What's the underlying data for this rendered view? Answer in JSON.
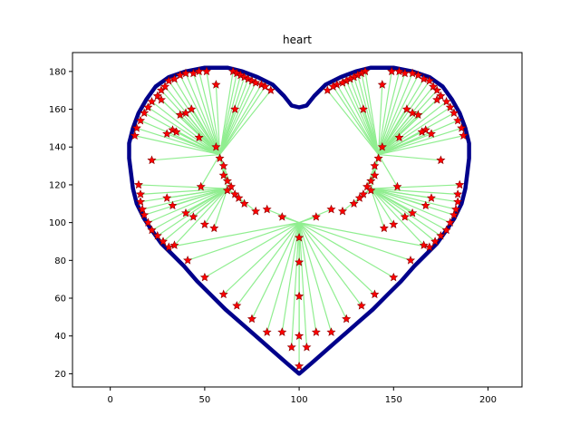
{
  "chart_data": {
    "type": "scatter",
    "title": "heart",
    "xlabel": "",
    "ylabel": "",
    "xlim": [
      -20,
      218
    ],
    "ylim": [
      13,
      190
    ],
    "xticks": [
      0,
      50,
      100,
      150,
      200
    ],
    "yticks": [
      20,
      40,
      60,
      80,
      100,
      120,
      140,
      160,
      180
    ],
    "xtick_labels": [
      "0",
      "50",
      "100",
      "150",
      "200"
    ],
    "ytick_labels": [
      "20",
      "40",
      "60",
      "80",
      "100",
      "120",
      "140",
      "160",
      "180"
    ],
    "grid": false,
    "legend": "none",
    "colors": {
      "outline": "#00008b",
      "spokes": "#90ee90",
      "markers": "#ff0000",
      "marker_edge": "#8b0000"
    },
    "outline": [
      [
        100,
        20
      ],
      [
        93,
        26
      ],
      [
        85,
        33
      ],
      [
        77,
        40
      ],
      [
        69,
        47
      ],
      [
        61,
        54
      ],
      [
        53,
        62
      ],
      [
        46,
        69
      ],
      [
        39,
        77
      ],
      [
        33,
        83
      ],
      [
        27,
        89
      ],
      [
        22,
        96
      ],
      [
        18,
        102
      ],
      [
        14,
        110
      ],
      [
        12,
        118
      ],
      [
        11,
        126
      ],
      [
        10,
        134
      ],
      [
        10,
        142
      ],
      [
        12,
        150
      ],
      [
        15,
        158
      ],
      [
        19,
        165
      ],
      [
        24,
        172
      ],
      [
        31,
        177
      ],
      [
        40,
        180
      ],
      [
        50,
        182
      ],
      [
        62,
        182
      ],
      [
        70,
        180
      ],
      [
        78,
        177
      ],
      [
        86,
        173
      ],
      [
        92,
        167
      ],
      [
        96,
        162
      ],
      [
        100,
        161
      ],
      [
        104,
        162
      ],
      [
        108,
        167
      ],
      [
        114,
        173
      ],
      [
        122,
        177
      ],
      [
        130,
        180
      ],
      [
        138,
        182
      ],
      [
        150,
        182
      ],
      [
        160,
        180
      ],
      [
        169,
        177
      ],
      [
        176,
        172
      ],
      [
        181,
        165
      ],
      [
        185,
        158
      ],
      [
        188,
        150
      ],
      [
        190,
        142
      ],
      [
        190,
        134
      ],
      [
        189,
        126
      ],
      [
        188,
        118
      ],
      [
        186,
        110
      ],
      [
        182,
        102
      ],
      [
        178,
        96
      ],
      [
        173,
        89
      ],
      [
        167,
        83
      ],
      [
        161,
        77
      ],
      [
        154,
        69
      ],
      [
        147,
        62
      ],
      [
        139,
        54
      ],
      [
        131,
        47
      ],
      [
        123,
        40
      ],
      [
        115,
        33
      ],
      [
        107,
        26
      ],
      [
        100,
        20
      ]
    ],
    "spoke_groups": [
      {
        "center": [
          100,
          100
        ],
        "points": [
          [
            100,
            24
          ],
          [
            96,
            34
          ],
          [
            104,
            34
          ],
          [
            100,
            40
          ],
          [
            91,
            42
          ],
          [
            109,
            42
          ],
          [
            100,
            61
          ],
          [
            75,
            49
          ],
          [
            125,
            49
          ],
          [
            100,
            79
          ],
          [
            67,
            56
          ],
          [
            133,
            56
          ],
          [
            60,
            62
          ],
          [
            140,
            62
          ],
          [
            50,
            71
          ],
          [
            150,
            71
          ],
          [
            41,
            80
          ],
          [
            159,
            80
          ],
          [
            31,
            87
          ],
          [
            169,
            87
          ],
          [
            100,
            92
          ],
          [
            83,
            107
          ],
          [
            117,
            107
          ],
          [
            91,
            103
          ],
          [
            109,
            103
          ],
          [
            83,
            42
          ],
          [
            117,
            42
          ]
        ]
      },
      {
        "center": [
          58,
          136
        ],
        "points": [
          [
            13,
            146
          ],
          [
            14,
            150
          ],
          [
            16,
            154
          ],
          [
            18,
            158
          ],
          [
            20,
            161
          ],
          [
            22,
            164
          ],
          [
            25,
            167
          ],
          [
            27,
            170
          ],
          [
            29,
            172
          ],
          [
            31,
            175
          ],
          [
            34,
            176
          ],
          [
            37,
            178
          ],
          [
            40,
            179
          ],
          [
            44,
            179
          ],
          [
            47,
            180
          ],
          [
            51,
            180
          ],
          [
            56,
            173
          ],
          [
            65,
            180
          ],
          [
            67,
            179
          ],
          [
            69,
            178
          ],
          [
            71,
            177
          ],
          [
            73,
            176
          ],
          [
            75,
            175
          ],
          [
            77,
            174
          ],
          [
            80,
            173
          ],
          [
            82,
            172
          ],
          [
            85,
            170
          ],
          [
            66,
            160
          ],
          [
            40,
            158
          ],
          [
            43,
            160
          ],
          [
            37,
            157
          ],
          [
            33,
            149
          ],
          [
            35,
            148
          ],
          [
            47,
            145
          ],
          [
            22,
            133
          ],
          [
            56,
            140
          ],
          [
            58,
            134
          ],
          [
            60,
            130
          ],
          [
            60,
            125
          ],
          [
            62,
            122
          ],
          [
            64,
            119
          ],
          [
            62,
            117
          ],
          [
            48,
            119
          ],
          [
            30,
            147
          ],
          [
            27,
            165
          ]
        ]
      },
      {
        "center": [
          142,
          136
        ],
        "points": [
          [
            187,
            146
          ],
          [
            186,
            150
          ],
          [
            184,
            154
          ],
          [
            182,
            158
          ],
          [
            180,
            161
          ],
          [
            178,
            164
          ],
          [
            175,
            167
          ],
          [
            173,
            170
          ],
          [
            171,
            172
          ],
          [
            169,
            175
          ],
          [
            166,
            176
          ],
          [
            163,
            178
          ],
          [
            160,
            179
          ],
          [
            156,
            179
          ],
          [
            153,
            180
          ],
          [
            149,
            180
          ],
          [
            144,
            173
          ],
          [
            135,
            180
          ],
          [
            133,
            179
          ],
          [
            131,
            178
          ],
          [
            129,
            177
          ],
          [
            127,
            176
          ],
          [
            125,
            175
          ],
          [
            123,
            174
          ],
          [
            120,
            173
          ],
          [
            118,
            172
          ],
          [
            115,
            170
          ],
          [
            134,
            160
          ],
          [
            160,
            158
          ],
          [
            157,
            160
          ],
          [
            163,
            157
          ],
          [
            167,
            149
          ],
          [
            165,
            148
          ],
          [
            153,
            145
          ],
          [
            175,
            133
          ],
          [
            144,
            140
          ],
          [
            142,
            134
          ],
          [
            140,
            130
          ],
          [
            140,
            125
          ],
          [
            138,
            122
          ],
          [
            136,
            119
          ],
          [
            138,
            117
          ],
          [
            152,
            119
          ],
          [
            170,
            147
          ],
          [
            173,
            165
          ]
        ]
      },
      {
        "center": [
          62,
          118
        ],
        "points": [
          [
            15,
            120
          ],
          [
            16,
            115
          ],
          [
            16,
            111
          ],
          [
            17,
            107
          ],
          [
            18,
            104
          ],
          [
            20,
            100
          ],
          [
            22,
            96
          ],
          [
            25,
            93
          ],
          [
            28,
            90
          ],
          [
            34,
            88
          ],
          [
            30,
            113
          ],
          [
            33,
            109
          ],
          [
            40,
            105
          ],
          [
            44,
            103
          ],
          [
            50,
            99
          ],
          [
            55,
            97
          ],
          [
            66,
            115
          ],
          [
            68,
            113
          ],
          [
            71,
            110
          ],
          [
            77,
            106
          ]
        ]
      },
      {
        "center": [
          138,
          118
        ],
        "points": [
          [
            185,
            120
          ],
          [
            184,
            115
          ],
          [
            184,
            111
          ],
          [
            183,
            107
          ],
          [
            182,
            104
          ],
          [
            180,
            100
          ],
          [
            178,
            96
          ],
          [
            175,
            93
          ],
          [
            172,
            90
          ],
          [
            166,
            88
          ],
          [
            170,
            113
          ],
          [
            167,
            109
          ],
          [
            160,
            105
          ],
          [
            156,
            103
          ],
          [
            150,
            99
          ],
          [
            145,
            97
          ],
          [
            134,
            115
          ],
          [
            132,
            113
          ],
          [
            129,
            110
          ],
          [
            123,
            106
          ]
        ]
      }
    ]
  }
}
